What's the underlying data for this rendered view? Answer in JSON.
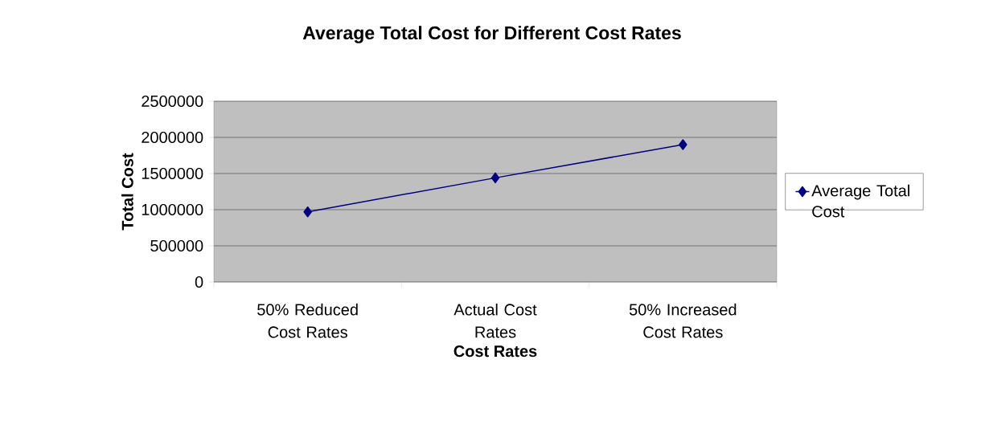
{
  "chart_data": {
    "type": "line",
    "title": "Average Total Cost for Different Cost Rates",
    "xlabel": "Cost Rates",
    "ylabel": "Total Cost",
    "categories": [
      "50% Reduced Cost Rates",
      "Actual Cost Rates",
      "50% Increased Cost Rates"
    ],
    "series": [
      {
        "name": "Average Total Cost",
        "color": "#000080",
        "values": [
          970000,
          1440000,
          1900000
        ]
      }
    ],
    "ylim": [
      0,
      2500000
    ],
    "yticks": [
      0,
      500000,
      1000000,
      1500000,
      2000000,
      2500000
    ],
    "grid": "y",
    "legend": "right",
    "marker": "diamond",
    "line_style": "solid"
  }
}
